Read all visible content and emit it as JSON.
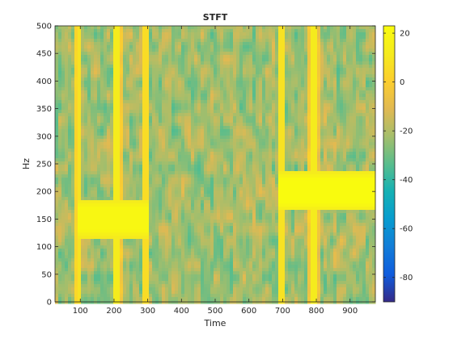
{
  "chart_data": {
    "type": "heatmap",
    "title": "STFT",
    "xlabel": "Time",
    "ylabel": "Hz",
    "xlim": [
      25,
      975
    ],
    "ylim": [
      0,
      500
    ],
    "xticks": [
      100,
      200,
      300,
      400,
      500,
      600,
      700,
      800,
      900
    ],
    "yticks": [
      0,
      50,
      100,
      150,
      200,
      250,
      300,
      350,
      400,
      450,
      500
    ],
    "colorbar": {
      "limits": [
        -90,
        23
      ],
      "ticks": [
        20,
        0,
        -20,
        -40,
        -60,
        -80
      ],
      "colormap": "parula"
    },
    "features": {
      "background_db": -22,
      "tone_bands": [
        {
          "t_start": 95,
          "t_end": 300,
          "f_low": 115,
          "f_high": 185,
          "db": 20
        },
        {
          "t_start": 690,
          "t_end": 975,
          "f_low": 165,
          "f_high": 235,
          "db": 23
        }
      ],
      "broadband_lines": [
        {
          "t_start": 88,
          "t_end": 100,
          "db": 8
        },
        {
          "t_start": 200,
          "t_end": 220,
          "db": 12
        },
        {
          "t_start": 285,
          "t_end": 300,
          "db": 6
        },
        {
          "t_start": 690,
          "t_end": 705,
          "db": 8
        },
        {
          "t_start": 780,
          "t_end": 805,
          "db": 12
        }
      ]
    }
  }
}
